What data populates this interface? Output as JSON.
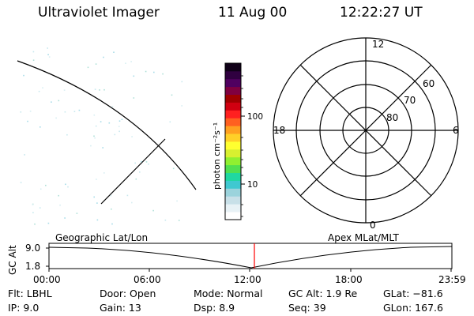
{
  "header": {
    "title": "Ultraviolet Imager",
    "date": "11 Aug 00",
    "time": "12:22:27 UT"
  },
  "colorbar": {
    "title": "photon cm⁻²s⁻¹",
    "ticks": [
      "100",
      "10"
    ],
    "scale": "log",
    "colors": [
      "#ffffff",
      "#e8f2f6",
      "#c8e0e8",
      "#9bd3dc",
      "#40c8d0",
      "#20d8a0",
      "#50e050",
      "#90f030",
      "#d8f030",
      "#ffff30",
      "#ffd028",
      "#ffa020",
      "#ff6020",
      "#ff2020",
      "#d00010",
      "#a00000",
      "#800040",
      "#500060",
      "#300040",
      "#100018"
    ]
  },
  "polar": {
    "mlt_labels": {
      "top": "12",
      "left": "18",
      "right": "6",
      "bottom": "0"
    },
    "lat_labels": [
      "60",
      "70",
      "80"
    ]
  },
  "timeline": {
    "ylabel": "GC Alt",
    "yticks": [
      "9.0",
      "1.8"
    ],
    "left_label": "Geographic Lat/Lon",
    "right_label": "Apex MLat/MLT",
    "xticks": [
      "00:00",
      "06:00",
      "12:00",
      "18:00",
      "23:59"
    ],
    "marker_color": "#ff0000"
  },
  "footer": {
    "flt": "Flt: LBHL",
    "ip": "IP:  9.0",
    "door": "Door: Open",
    "gain": "Gain: 13",
    "mode": "Mode: Normal",
    "dsp": "Dsp:    8.9",
    "gcalt": "GC Alt: 1.9 Re",
    "seq": "Seq: 39",
    "glat": "GLat: −81.6",
    "glon": "GLon: 167.6"
  }
}
